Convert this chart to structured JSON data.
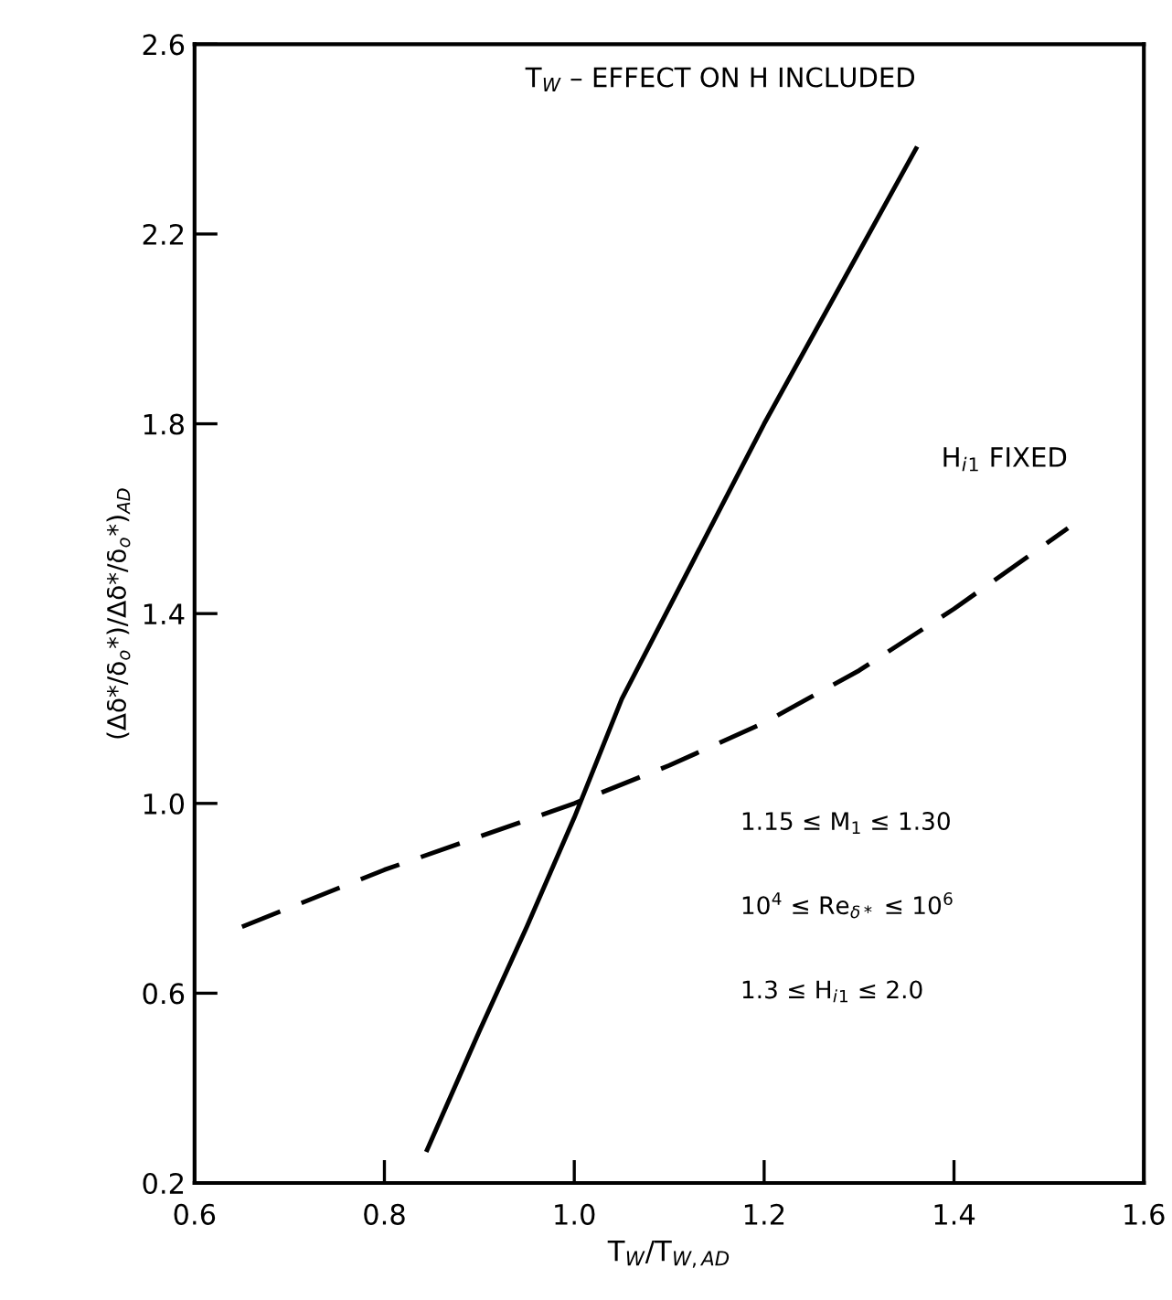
{
  "chart_data": {
    "type": "line",
    "xlabel": "T$_{W}$/T$_{W,AD}$",
    "ylabel": "(Δδ*/δ$_{o}$*)/Δδ*/δ$_{o}$*)$_{AD}$",
    "xlim": [
      0.6,
      1.6
    ],
    "xticks": [
      0.6,
      0.8,
      {
        "value": 1,
        "label": "1.0"
      },
      1.2,
      1.4,
      1.6
    ],
    "ylim": [
      0.2,
      2.6
    ],
    "yticks": [
      0.2,
      0.6,
      {
        "value": 1,
        "label": "1.0"
      },
      1.4,
      1.8,
      2.2,
      2.6
    ],
    "grid": false,
    "legend": false,
    "marker": "none",
    "series": [
      {
        "name": "T$_{W}$ – EFFECT ON H INCLUDED",
        "color": "#000000",
        "line_style": "solid",
        "x": [
          0.845,
          0.9,
          0.95,
          1.0,
          1.05,
          1.2,
          1.36
        ],
        "values": [
          0.27,
          0.52,
          0.74,
          0.97,
          1.22,
          1.8,
          2.38
        ]
      },
      {
        "name": "H$_{i}$$_{1}$ FIXED",
        "color": "#000000",
        "line_style": "dashed",
        "x": [
          0.65,
          0.7,
          0.8,
          0.9,
          1.0,
          1.1,
          1.2,
          1.3,
          1.4,
          1.52
        ],
        "values": [
          0.74,
          0.78,
          0.86,
          0.93,
          1.0,
          1.08,
          1.17,
          1.28,
          1.41,
          1.58
        ]
      }
    ],
    "annotations": [
      "1.15 ≤ M$_{1}$ ≤ 1.30",
      "10$^{4}$ ≤ Re$_{δ*}$ ≤ 10$^{6}$",
      "1.3 ≤ H$_{i}$$_{1}$ ≤ 2.0"
    ]
  }
}
